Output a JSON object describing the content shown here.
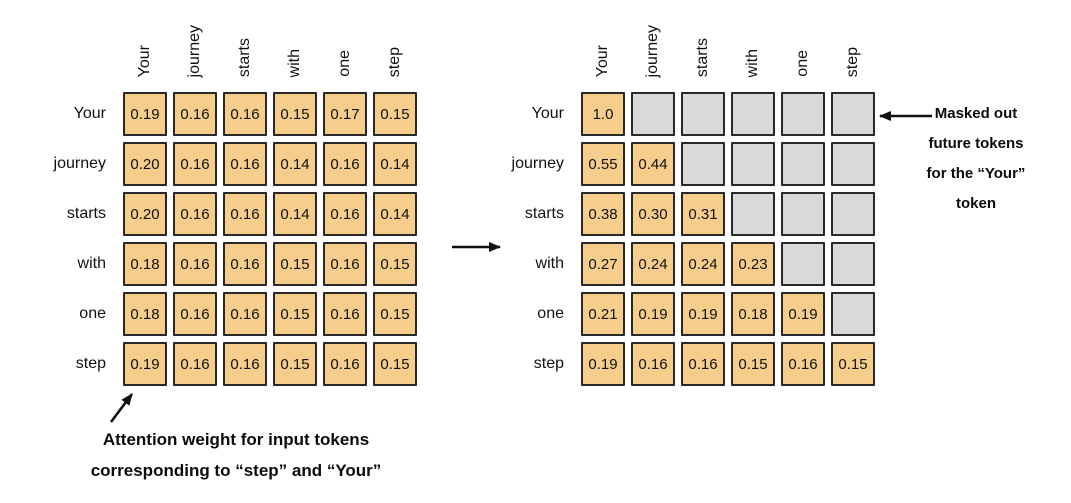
{
  "tokens": [
    "Your",
    "journey",
    "starts",
    "with",
    "one",
    "step"
  ],
  "left_matrix": {
    "rows": [
      {
        "label": "Your",
        "values": [
          "0.19",
          "0.16",
          "0.16",
          "0.15",
          "0.17",
          "0.15"
        ]
      },
      {
        "label": "journey",
        "values": [
          "0.20",
          "0.16",
          "0.16",
          "0.14",
          "0.16",
          "0.14"
        ]
      },
      {
        "label": "starts",
        "values": [
          "0.20",
          "0.16",
          "0.16",
          "0.14",
          "0.16",
          "0.14"
        ]
      },
      {
        "label": "with",
        "values": [
          "0.18",
          "0.16",
          "0.16",
          "0.15",
          "0.16",
          "0.15"
        ]
      },
      {
        "label": "one",
        "values": [
          "0.18",
          "0.16",
          "0.16",
          "0.15",
          "0.16",
          "0.15"
        ]
      },
      {
        "label": "step",
        "values": [
          "0.19",
          "0.16",
          "0.16",
          "0.15",
          "0.16",
          "0.15"
        ]
      }
    ]
  },
  "right_matrix": {
    "rows": [
      {
        "label": "Your",
        "values": [
          "1.0",
          null,
          null,
          null,
          null,
          null
        ]
      },
      {
        "label": "journey",
        "values": [
          "0.55",
          "0.44",
          null,
          null,
          null,
          null
        ]
      },
      {
        "label": "starts",
        "values": [
          "0.38",
          "0.30",
          "0.31",
          null,
          null,
          null
        ]
      },
      {
        "label": "with",
        "values": [
          "0.27",
          "0.24",
          "0.24",
          "0.23",
          null,
          null
        ]
      },
      {
        "label": "one",
        "values": [
          "0.21",
          "0.19",
          "0.19",
          "0.18",
          "0.19",
          null
        ]
      },
      {
        "label": "step",
        "values": [
          "0.19",
          "0.16",
          "0.16",
          "0.15",
          "0.16",
          "0.15"
        ]
      }
    ]
  },
  "annotations": {
    "masked_note": "Masked out\nfuture tokens\nfor the “Your”\ntoken",
    "attention_note": "Attention weight for input tokens\ncorresponding to “step” and “Your”"
  },
  "colors": {
    "cell_fill": "#F6CD8A",
    "masked_fill": "#D9D9D9",
    "border": "#282828"
  }
}
